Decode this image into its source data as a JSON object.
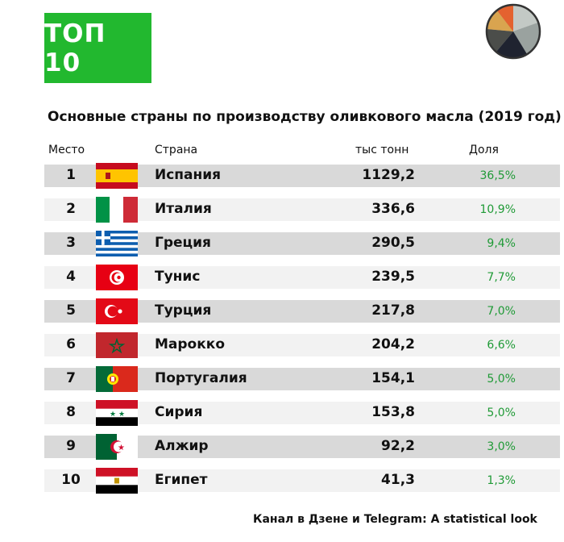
{
  "badge": "ТОП 10",
  "pie_colors": [
    "#9aa29f",
    "#e4622f",
    "#1f2330",
    "#4b4d4a",
    "#d9a44f",
    "#c3c9c5"
  ],
  "chart_data": {
    "type": "table",
    "title": "Основные страны по производству оливкового масла (2019 год)",
    "columns": [
      "Место",
      "Страна",
      "тыс тонн",
      "Доля"
    ],
    "rows": [
      {
        "rank": "1",
        "flag": "spain-flag-icon",
        "country": "Испания",
        "value": "1129,2",
        "share": "36,5%"
      },
      {
        "rank": "2",
        "flag": "italy-flag-icon",
        "country": "Италия",
        "value": "336,6",
        "share": "10,9%"
      },
      {
        "rank": "3",
        "flag": "greece-flag-icon",
        "country": "Греция",
        "value": "290,5",
        "share": "9,4%"
      },
      {
        "rank": "4",
        "flag": "tunisia-flag-icon",
        "country": "Тунис",
        "value": "239,5",
        "share": "7,7%"
      },
      {
        "rank": "5",
        "flag": "turkey-flag-icon",
        "country": "Турция",
        "value": "217,8",
        "share": "7,0%"
      },
      {
        "rank": "6",
        "flag": "morocco-flag-icon",
        "country": "Марокко",
        "value": "204,2",
        "share": "6,6%"
      },
      {
        "rank": "7",
        "flag": "portugal-flag-icon",
        "country": "Португалия",
        "value": "154,1",
        "share": "5,0%"
      },
      {
        "rank": "8",
        "flag": "syria-flag-icon",
        "country": "Сирия",
        "value": "153,8",
        "share": "5,0%"
      },
      {
        "rank": "9",
        "flag": "algeria-flag-icon",
        "country": "Алжир",
        "value": "92,2",
        "share": "3,0%"
      },
      {
        "rank": "10",
        "flag": "egypt-flag-icon",
        "country": "Египет",
        "value": "41,3",
        "share": "1,3%"
      }
    ]
  },
  "footer": "Канал в Дзене и Telegram: A statistical look"
}
